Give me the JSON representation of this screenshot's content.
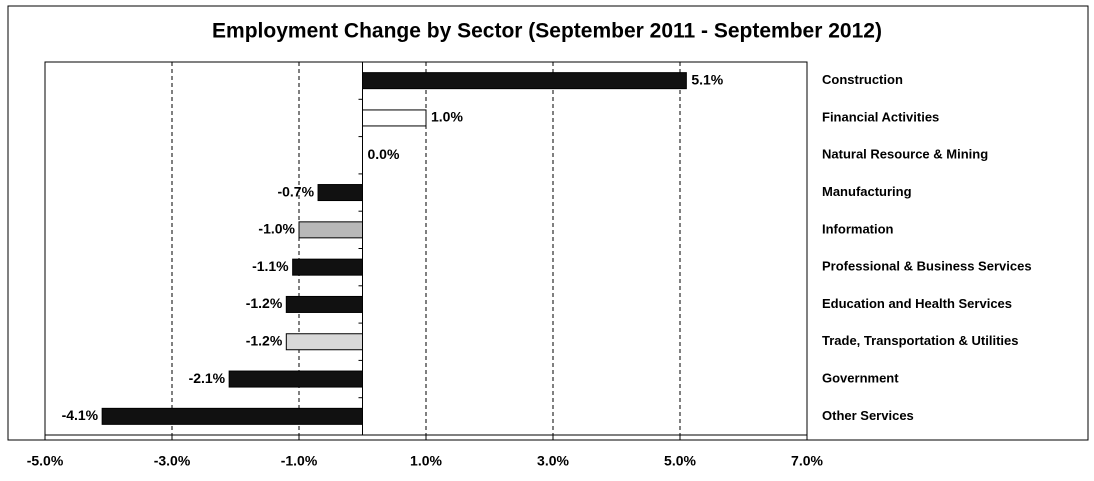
{
  "chart_data": {
    "type": "hbar",
    "title": "Employment Change by Sector (September 2011 - September 2012)",
    "categories": [
      "Construction",
      "Financial Activities",
      "Natural Resource & Mining",
      "Manufacturing",
      "Information",
      "Professional & Business Services",
      "Education and Health Services",
      "Trade, Transportation & Utilities",
      "Government",
      "Other Services"
    ],
    "values": [
      5.1,
      1.0,
      0.0,
      -0.7,
      -1.0,
      -1.1,
      -1.2,
      -1.2,
      -2.1,
      -4.1
    ],
    "value_labels": [
      "5.1%",
      "1.0%",
      "0.0%",
      "-0.7%",
      "-1.0%",
      "-1.1%",
      "-1.2%",
      "-1.2%",
      "-2.1%",
      "-4.1%"
    ],
    "colors": [
      "#111111",
      "#ffffff",
      "#111111",
      "#111111",
      "#b8b8b8",
      "#111111",
      "#111111",
      "#d8d8d8",
      "#111111",
      "#111111"
    ],
    "xlim": [
      -5,
      7
    ],
    "xticks": [
      {
        "value": -5,
        "label": "-5.0%"
      },
      {
        "value": -3,
        "label": "-3.0%"
      },
      {
        "value": -1,
        "label": "-1.0%"
      },
      {
        "value": 1,
        "label": "1.0%"
      },
      {
        "value": 3,
        "label": "3.0%"
      },
      {
        "value": 5,
        "label": "5.0%"
      },
      {
        "value": 7,
        "label": "7.0%"
      }
    ],
    "grid": true
  }
}
